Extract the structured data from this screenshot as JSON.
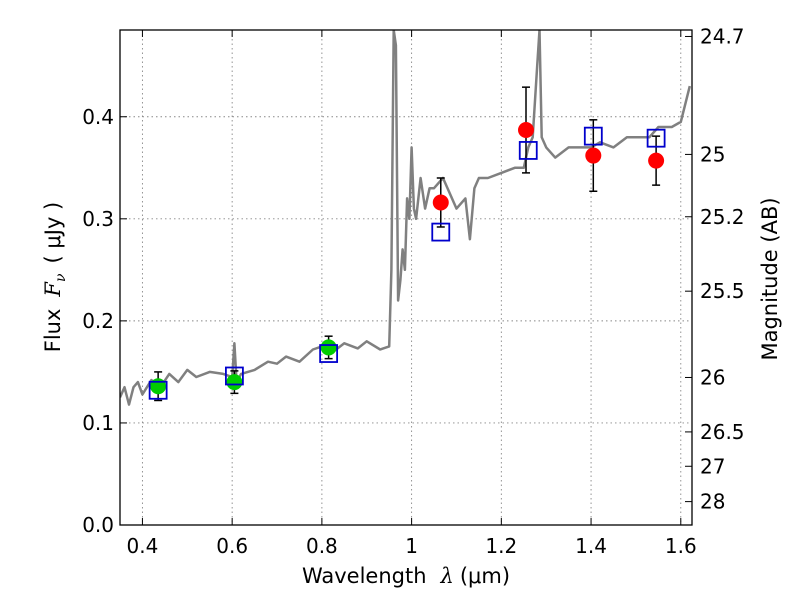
{
  "chart_data": {
    "type": "scatter",
    "xlabel_prefix": "Wavelength",
    "xlabel_math": "λ",
    "xlabel_unit": "(μm)",
    "ylabel_prefix": "Flux",
    "ylabel_math": "F",
    "ylabel_sub": "ν",
    "ylabel_unit": "( μJy )",
    "y2label": "Magnitude (AB)",
    "xlim": [
      0.35,
      1.625
    ],
    "ylim": [
      0.0,
      0.485
    ],
    "x_ticks": [
      0.4,
      0.6,
      0.8,
      1.0,
      1.2,
      1.4,
      1.6
    ],
    "x_tick_labels": [
      "0.4",
      "0.6",
      "0.8",
      "1",
      "1.2",
      "1.4",
      "1.6"
    ],
    "y_ticks": [
      0.0,
      0.1,
      0.2,
      0.3,
      0.4
    ],
    "y_tick_labels": [
      "0.0",
      "0.1",
      "0.2",
      "0.3",
      "0.4"
    ],
    "mag_ticks": [
      24.7,
      25,
      25.2,
      25.5,
      26,
      26.5,
      27,
      28
    ],
    "mag_tick_labels": [
      "24.7",
      "25",
      "25.2",
      "25.5",
      "26",
      "26.5",
      "27",
      "28"
    ],
    "grid": true,
    "colors": {
      "model": "#808080",
      "optical": "#00cc00",
      "nir": "#ff0000",
      "box": "#0000cc",
      "errorbar": "#000000"
    },
    "series": [
      {
        "type": "line",
        "color_key": "model",
        "x": [
          0.35,
          0.36,
          0.37,
          0.38,
          0.39,
          0.4,
          0.42,
          0.44,
          0.46,
          0.48,
          0.5,
          0.52,
          0.55,
          0.58,
          0.6,
          0.605,
          0.61,
          0.62,
          0.65,
          0.68,
          0.7,
          0.72,
          0.75,
          0.78,
          0.8,
          0.82,
          0.85,
          0.88,
          0.9,
          0.93,
          0.95,
          0.955,
          0.96,
          0.965,
          0.97,
          0.975,
          0.98,
          0.985,
          0.99,
          0.995,
          1.0,
          1.005,
          1.01,
          1.02,
          1.03,
          1.04,
          1.05,
          1.07,
          1.1,
          1.12,
          1.13,
          1.14,
          1.15,
          1.17,
          1.2,
          1.23,
          1.25,
          1.26,
          1.27,
          1.28,
          1.285,
          1.29,
          1.3,
          1.32,
          1.35,
          1.38,
          1.4,
          1.42,
          1.45,
          1.48,
          1.5,
          1.53,
          1.55,
          1.58,
          1.6,
          1.62
        ],
        "y": [
          0.125,
          0.135,
          0.118,
          0.135,
          0.14,
          0.128,
          0.142,
          0.135,
          0.148,
          0.14,
          0.152,
          0.145,
          0.15,
          0.148,
          0.145,
          0.178,
          0.14,
          0.148,
          0.152,
          0.16,
          0.158,
          0.165,
          0.16,
          0.172,
          0.175,
          0.168,
          0.178,
          0.173,
          0.18,
          0.172,
          0.175,
          0.25,
          0.485,
          0.47,
          0.22,
          0.24,
          0.27,
          0.25,
          0.32,
          0.3,
          0.37,
          0.31,
          0.3,
          0.34,
          0.31,
          0.33,
          0.33,
          0.34,
          0.31,
          0.32,
          0.28,
          0.33,
          0.34,
          0.34,
          0.345,
          0.35,
          0.35,
          0.37,
          0.38,
          0.45,
          0.485,
          0.38,
          0.37,
          0.36,
          0.37,
          0.37,
          0.37,
          0.375,
          0.37,
          0.38,
          0.38,
          0.38,
          0.39,
          0.39,
          0.395,
          0.43
        ]
      },
      {
        "type": "points",
        "marker": "circle",
        "color_key": "optical",
        "x": [
          0.435,
          0.605,
          0.815
        ],
        "y": [
          0.136,
          0.14,
          0.174
        ],
        "yerr": [
          0.014,
          0.011,
          0.011
        ]
      },
      {
        "type": "points",
        "marker": "circle",
        "color_key": "nir",
        "x": [
          1.065,
          1.255,
          1.405,
          1.545
        ],
        "y": [
          0.316,
          0.387,
          0.362,
          0.357
        ],
        "yerr": [
          0.024,
          0.042,
          0.035,
          0.024
        ]
      },
      {
        "type": "points",
        "marker": "open-square",
        "color_key": "box",
        "x": [
          0.435,
          0.605,
          0.815,
          1.065,
          1.26,
          1.405,
          1.545
        ],
        "y": [
          0.132,
          0.146,
          0.168,
          0.287,
          0.367,
          0.381,
          0.379
        ]
      }
    ]
  }
}
